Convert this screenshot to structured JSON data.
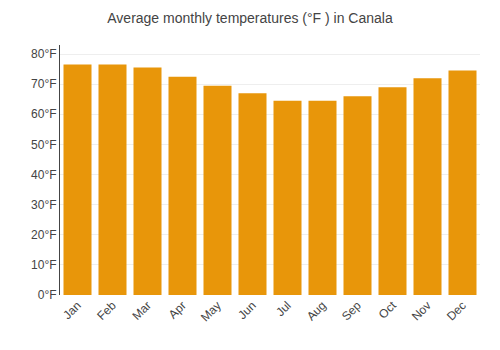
{
  "chart_data": {
    "type": "bar",
    "title": "Average monthly temperatures (°F ) in Canala",
    "categories": [
      "Jan",
      "Feb",
      "Mar",
      "Apr",
      "May",
      "Jun",
      "Jul",
      "Aug",
      "Sep",
      "Oct",
      "Nov",
      "Dec"
    ],
    "values": [
      76.5,
      76.5,
      75.5,
      72.5,
      69.5,
      67.0,
      64.5,
      64.5,
      66.0,
      69.0,
      72.0,
      74.5
    ],
    "color": "#E8960A",
    "ylim": [
      0,
      83
    ],
    "yticks": [
      {
        "value": 0,
        "label": "0°F"
      },
      {
        "value": 10,
        "label": "10°F"
      },
      {
        "value": 20,
        "label": "20°F"
      },
      {
        "value": 30,
        "label": "30°F"
      },
      {
        "value": 40,
        "label": "40°F"
      },
      {
        "value": 50,
        "label": "50°F"
      },
      {
        "value": 60,
        "label": "60°F"
      },
      {
        "value": 70,
        "label": "70°F"
      },
      {
        "value": 80,
        "label": "80°F"
      }
    ],
    "grid": true
  }
}
